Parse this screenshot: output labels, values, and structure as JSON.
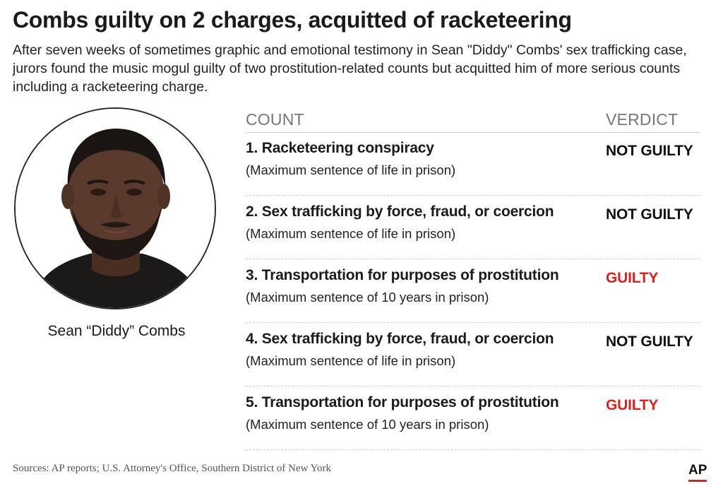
{
  "headline": "Combs guilty on 2 charges, acquitted of racketeering",
  "dek": "After seven weeks of sometimes graphic and emotional testimony in Sean \"Diddy\" Combs' sex trafficking case, jurors found the music mogul guilty of two prostitution-related counts but acquitted him of more serious counts including a racketeering charge.",
  "photo": {
    "caption": "Sean “Diddy” Combs"
  },
  "table": {
    "count_header": "COUNT",
    "verdict_header": "VERDICT",
    "rows": [
      {
        "title": "1. Racketeering conspiracy",
        "sentence": "(Maximum sentence of life in prison)",
        "verdict": "NOT GUILTY",
        "status": "not-guilty"
      },
      {
        "title": "2. Sex trafficking by force, fraud, or coercion",
        "sentence": "(Maximum sentence of life in prison)",
        "verdict": "NOT GUILTY",
        "status": "not-guilty"
      },
      {
        "title": "3. Transportation for purposes of prostitution",
        "sentence": "(Maximum sentence of 10 years in prison)",
        "verdict": "GUILTY",
        "status": "guilty"
      },
      {
        "title": "4. Sex trafficking by force, fraud, or coercion",
        "sentence": "(Maximum sentence of life in prison)",
        "verdict": "NOT GUILTY",
        "status": "not-guilty"
      },
      {
        "title": "5. Transportation for purposes of prostitution",
        "sentence": "(Maximum sentence of 10 years in prison)",
        "verdict": "GUILTY",
        "status": "guilty"
      }
    ]
  },
  "colors": {
    "guilty": "#e0201b",
    "not_guilty": "#111111",
    "ap_bar": "#e0201b"
  },
  "sources": "Sources: AP reports; U.S. Attorney's Office, Southern District of New York",
  "logo": {
    "text": "AP"
  }
}
